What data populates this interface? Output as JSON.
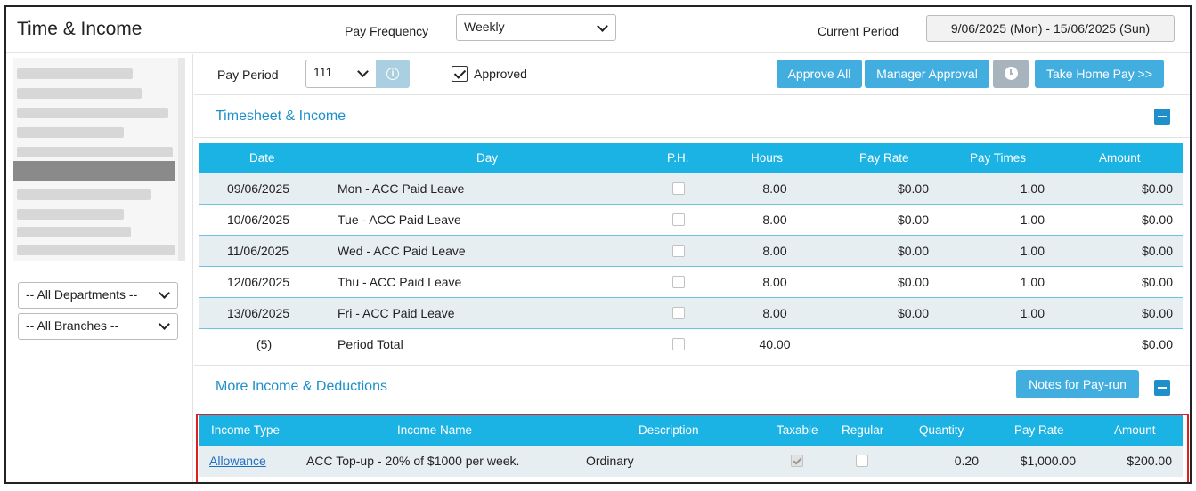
{
  "header": {
    "title": "Time & Income",
    "pay_frequency_label": "Pay Frequency",
    "pay_frequency_value": "Weekly",
    "current_period_label": "Current Period",
    "current_period_value": "9/06/2025 (Mon) - 15/06/2025 (Sun)"
  },
  "sidebar": {
    "departments": "-- All Departments --",
    "branches": "-- All Branches --"
  },
  "pay_period_bar": {
    "label": "Pay Period",
    "value": "111",
    "approved_label": "Approved",
    "approved_checked": true,
    "approve_all": "Approve All",
    "manager_approval": "Manager Approval",
    "take_home_pay": "Take Home Pay >>"
  },
  "timesheet": {
    "title": "Timesheet & Income",
    "columns": [
      "Date",
      "Day",
      "P.H.",
      "Hours",
      "Pay Rate",
      "Pay Times",
      "Amount"
    ],
    "rows": [
      {
        "date": "09/06/2025",
        "day": "Mon - ACC Paid Leave",
        "hours": "8.00",
        "pay_rate": "$0.00",
        "pay_times": "1.00",
        "amount": "$0.00"
      },
      {
        "date": "10/06/2025",
        "day": "Tue - ACC Paid Leave",
        "hours": "8.00",
        "pay_rate": "$0.00",
        "pay_times": "1.00",
        "amount": "$0.00"
      },
      {
        "date": "11/06/2025",
        "day": "Wed - ACC Paid Leave",
        "hours": "8.00",
        "pay_rate": "$0.00",
        "pay_times": "1.00",
        "amount": "$0.00"
      },
      {
        "date": "12/06/2025",
        "day": "Thu - ACC Paid Leave",
        "hours": "8.00",
        "pay_rate": "$0.00",
        "pay_times": "1.00",
        "amount": "$0.00"
      },
      {
        "date": "13/06/2025",
        "day": "Fri - ACC Paid Leave",
        "hours": "8.00",
        "pay_rate": "$0.00",
        "pay_times": "1.00",
        "amount": "$0.00"
      }
    ],
    "total": {
      "date": "(5)",
      "day": "Period Total",
      "hours": "40.00",
      "amount": "$0.00"
    }
  },
  "more_income": {
    "title": "More Income & Deductions",
    "notes_button": "Notes for Pay-run",
    "columns": [
      "Income Type",
      "Income Name",
      "Description",
      "Taxable",
      "Regular",
      "Quantity",
      "Pay Rate",
      "Amount"
    ],
    "rows": [
      {
        "income_type": "Allowance",
        "income_name": "ACC Top-up - 20% of $1000 per week.",
        "description": "Ordinary",
        "taxable": true,
        "regular": false,
        "quantity": "0.20",
        "pay_rate": "$1,000.00",
        "amount": "$200.00"
      }
    ]
  },
  "colors": {
    "accent": "#1ab3e3",
    "button": "#42aee0",
    "link": "#1e8fc9",
    "highlight": "#e11d1d"
  }
}
